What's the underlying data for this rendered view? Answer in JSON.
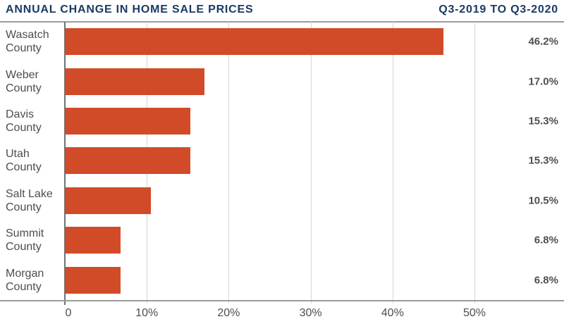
{
  "header": {
    "title": "ANNUAL CHANGE IN HOME SALE PRICES",
    "period": "Q3-2019 TO Q3-2020"
  },
  "colors": {
    "title": "#1a3a64",
    "bar": "#d14b28",
    "label": "#4d4d4d",
    "value": "#4f4f4f",
    "gridline": "#d6d6d6",
    "frame": "#9b9b9b",
    "y_axis": "#6f7478"
  },
  "chart_data": {
    "type": "bar",
    "orientation": "horizontal",
    "title": "ANNUAL CHANGE IN HOME SALE PRICES",
    "subtitle": "Q3-2019 TO Q3-2020",
    "categories": [
      "Wasatch County",
      "Weber County",
      "Davis County",
      "Utah County",
      "Salt Lake County",
      "Summit County",
      "Morgan County"
    ],
    "values": [
      46.2,
      17.0,
      15.3,
      15.3,
      10.5,
      6.8,
      6.8
    ],
    "value_labels": [
      "46.2%",
      "17.0%",
      "15.3%",
      "15.3%",
      "10.5%",
      "6.8%",
      "6.8%"
    ],
    "xlabel": "",
    "ylabel": "",
    "x_ticks": [
      {
        "value": 0,
        "label": "0"
      },
      {
        "value": 10,
        "label": "10%"
      },
      {
        "value": 20,
        "label": "20%"
      },
      {
        "value": 30,
        "label": "30%"
      },
      {
        "value": 40,
        "label": "40%"
      },
      {
        "value": 50,
        "label": "50%"
      }
    ],
    "xlim": [
      0,
      61
    ],
    "grid": true,
    "legend": "none"
  }
}
